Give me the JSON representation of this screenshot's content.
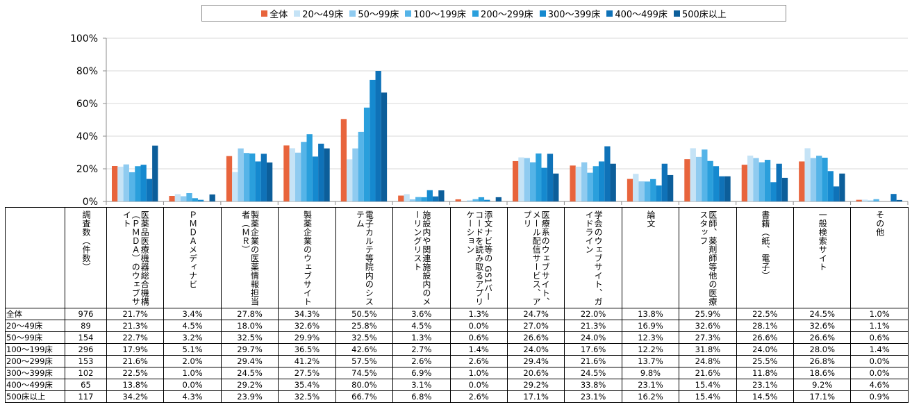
{
  "chart_data": {
    "type": "bar",
    "ylim": [
      0,
      100
    ],
    "y_ticks": [
      "0%",
      "20%",
      "40%",
      "60%",
      "80%",
      "100%"
    ],
    "legend_position": "top",
    "grid": true,
    "categories": [
      "医薬品医療機器総合機構（ＰＭＤＡ）のウェブサイト",
      "ＰＭＤＡメディナビ",
      "製薬企業の医薬情報担当者（ＭＲ）",
      "製薬企業のウェブサイト",
      "電子カルテ等院内のシステム",
      "施設内や関連施設内のメーリングリスト",
      "添文ナビ等の GS1バーコードを読み取るアプリケーション",
      "医療系のウェブサイト、メール配信サービス、アプリ",
      "学会のウェブサイト、ガイドライン",
      "論文",
      "医師、薬剤師等他の医療スタッフ",
      "書籍（紙、電子）",
      "一般検索サイト",
      "その他"
    ],
    "series": [
      {
        "name": "全体",
        "color": "#e8643c",
        "values": [
          21.7,
          3.4,
          27.8,
          34.3,
          50.5,
          3.6,
          1.3,
          24.7,
          22.0,
          13.8,
          25.9,
          22.5,
          24.5,
          1.0
        ]
      },
      {
        "name": "20〜49床",
        "color": "#c5e3f6",
        "values": [
          21.3,
          4.5,
          18.0,
          32.6,
          25.8,
          4.5,
          0.0,
          27.0,
          21.3,
          16.9,
          32.6,
          28.1,
          32.6,
          1.1
        ]
      },
      {
        "name": "50〜99床",
        "color": "#8fcbf0",
        "values": [
          22.7,
          3.2,
          32.5,
          29.9,
          32.5,
          1.3,
          0.6,
          26.6,
          24.0,
          12.3,
          27.3,
          26.6,
          26.6,
          0.6
        ]
      },
      {
        "name": "100〜199床",
        "color": "#55b4e8",
        "values": [
          17.9,
          5.1,
          29.7,
          36.5,
          42.6,
          2.7,
          1.4,
          24.0,
          17.6,
          12.2,
          31.8,
          24.0,
          28.0,
          1.4
        ]
      },
      {
        "name": "200〜299床",
        "color": "#2a9fdc",
        "values": [
          21.6,
          2.0,
          29.4,
          41.2,
          57.5,
          2.6,
          2.6,
          29.4,
          21.6,
          13.7,
          24.8,
          25.5,
          26.8,
          0.0
        ]
      },
      {
        "name": "300〜399床",
        "color": "#1589cf",
        "values": [
          22.5,
          1.0,
          24.5,
          27.5,
          74.5,
          6.9,
          1.0,
          20.6,
          24.5,
          9.8,
          21.6,
          11.8,
          18.6,
          0.0
        ]
      },
      {
        "name": "400〜499床",
        "color": "#0f72b8",
        "values": [
          13.8,
          0.0,
          29.2,
          35.4,
          80.0,
          3.1,
          0.0,
          29.2,
          33.8,
          23.1,
          15.4,
          23.1,
          9.2,
          4.6
        ]
      },
      {
        "name": "500床以上",
        "color": "#0c5e9a",
        "values": [
          34.2,
          4.3,
          23.9,
          32.5,
          66.7,
          6.8,
          2.6,
          17.1,
          23.1,
          16.2,
          15.4,
          14.5,
          17.1,
          0.9
        ]
      }
    ]
  },
  "table": {
    "count_header": "調査数（件数）",
    "rows": [
      {
        "label": "全体",
        "count": "976",
        "values": [
          "21.7%",
          "3.4%",
          "27.8%",
          "34.3%",
          "50.5%",
          "3.6%",
          "1.3%",
          "24.7%",
          "22.0%",
          "13.8%",
          "25.9%",
          "22.5%",
          "24.5%",
          "1.0%"
        ]
      },
      {
        "label": "20〜49床",
        "count": "89",
        "values": [
          "21.3%",
          "4.5%",
          "18.0%",
          "32.6%",
          "25.8%",
          "4.5%",
          "0.0%",
          "27.0%",
          "21.3%",
          "16.9%",
          "32.6%",
          "28.1%",
          "32.6%",
          "1.1%"
        ]
      },
      {
        "label": "50〜99床",
        "count": "154",
        "values": [
          "22.7%",
          "3.2%",
          "32.5%",
          "29.9%",
          "32.5%",
          "1.3%",
          "0.6%",
          "26.6%",
          "24.0%",
          "12.3%",
          "27.3%",
          "26.6%",
          "26.6%",
          "0.6%"
        ]
      },
      {
        "label": "100〜199床",
        "count": "296",
        "values": [
          "17.9%",
          "5.1%",
          "29.7%",
          "36.5%",
          "42.6%",
          "2.7%",
          "1.4%",
          "24.0%",
          "17.6%",
          "12.2%",
          "31.8%",
          "24.0%",
          "28.0%",
          "1.4%"
        ]
      },
      {
        "label": "200〜299床",
        "count": "153",
        "values": [
          "21.6%",
          "2.0%",
          "29.4%",
          "41.2%",
          "57.5%",
          "2.6%",
          "2.6%",
          "29.4%",
          "21.6%",
          "13.7%",
          "24.8%",
          "25.5%",
          "26.8%",
          "0.0%"
        ]
      },
      {
        "label": "300〜399床",
        "count": "102",
        "values": [
          "22.5%",
          "1.0%",
          "24.5%",
          "27.5%",
          "74.5%",
          "6.9%",
          "1.0%",
          "20.6%",
          "24.5%",
          "9.8%",
          "21.6%",
          "11.8%",
          "18.6%",
          "0.0%"
        ]
      },
      {
        "label": "400〜499床",
        "count": "65",
        "values": [
          "13.8%",
          "0.0%",
          "29.2%",
          "35.4%",
          "80.0%",
          "3.1%",
          "0.0%",
          "29.2%",
          "33.8%",
          "23.1%",
          "15.4%",
          "23.1%",
          "9.2%",
          "4.6%"
        ]
      },
      {
        "label": "500床以上",
        "count": "117",
        "values": [
          "34.2%",
          "4.3%",
          "23.9%",
          "32.5%",
          "66.7%",
          "6.8%",
          "2.6%",
          "17.1%",
          "23.1%",
          "16.2%",
          "15.4%",
          "14.5%",
          "17.1%",
          "0.9%"
        ]
      }
    ]
  }
}
